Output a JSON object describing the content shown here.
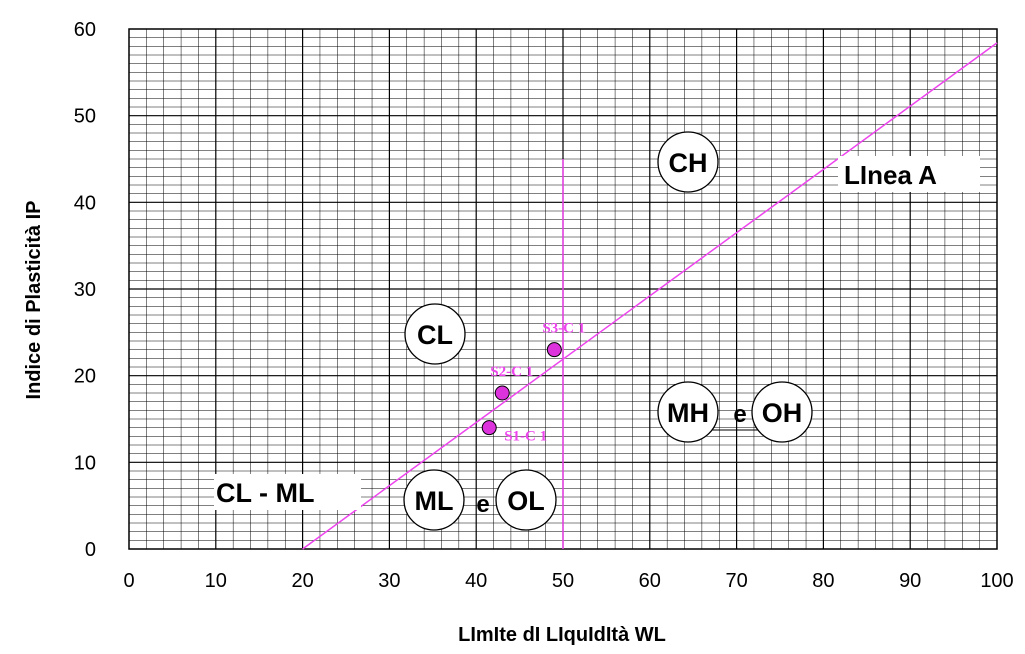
{
  "chart_data": {
    "type": "scatter",
    "xlabel": "LImIte dI LIquIdItà WL",
    "ylabel": "Indice di Plasticità IP",
    "xlim": [
      0,
      100
    ],
    "ylim": [
      0,
      60
    ],
    "x_ticks": [
      "0",
      "10",
      "20",
      "30",
      "40",
      "50",
      "60",
      "70",
      "80",
      "90",
      "100"
    ],
    "y_ticks": [
      "0",
      "10",
      "20",
      "30",
      "40",
      "50",
      "60"
    ],
    "grid": true,
    "accent_color": "#ee44ee",
    "point_fill": "#dd33dd",
    "points": [
      {
        "label": "S1-C 1",
        "x": 41.5,
        "y": 14
      },
      {
        "label": "S2-C 1",
        "x": 43,
        "y": 18
      },
      {
        "label": "S3-C 1",
        "x": 49,
        "y": 23
      }
    ],
    "a_line": {
      "label": "LInea A",
      "from": [
        20,
        0
      ],
      "to": [
        100,
        58.4
      ]
    },
    "wl50_line": {
      "x": 50,
      "y_from": 0,
      "y_to": 45
    },
    "zones": {
      "CH": "CH",
      "CL": "CL",
      "CL_ML": "CL - ML",
      "ML": "ML",
      "OL": "OL",
      "MH": "MH",
      "OH": "OH",
      "connector": "e"
    }
  }
}
